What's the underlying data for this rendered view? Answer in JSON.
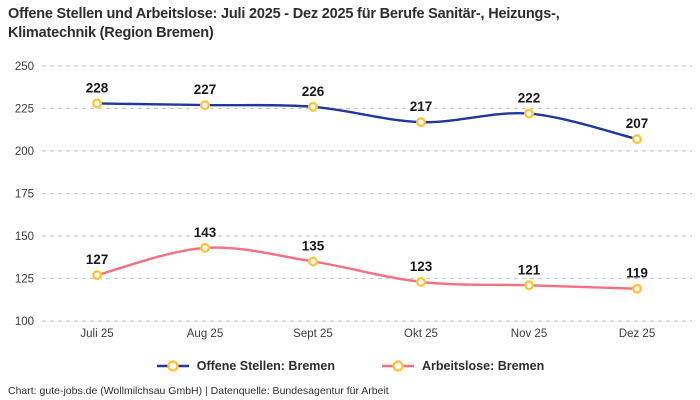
{
  "title": {
    "lines": [
      "Offene Stellen und Arbeitslose: Juli 2025 - Dez 2025 für Berufe Sanitär-, Heizungs-,",
      "Klimatechnik (Region Bremen)"
    ]
  },
  "footer": {
    "credit": "Chart: gute-jobs.de (Wollmilchsau GmbH) | Datenquelle: Bundesagentur für Arbeit"
  },
  "colors": {
    "series_offene_stellen": "#22389f",
    "series_arbeitslose": "#f96e80",
    "marker_ring": "#ffc53d",
    "marker_fill": "#ffffff",
    "grid": "#cbcbcb",
    "axis_text": "#3c3c3c",
    "data_label": "#1a1a1a",
    "title_text": "#2e2e2e"
  },
  "chart_data": {
    "type": "line",
    "categories": [
      "Juli 25",
      "Aug 25",
      "Sept 25",
      "Okt 25",
      "Nov 25",
      "Dez 25"
    ],
    "series": [
      {
        "name": "Offene Stellen: Bremen",
        "color_key": "series_offene_stellen",
        "values": [
          228,
          227,
          226,
          217,
          222,
          207
        ]
      },
      {
        "name": "Arbeitslose: Bremen",
        "color_key": "series_arbeitslose",
        "values": [
          127,
          143,
          135,
          123,
          121,
          119
        ]
      }
    ],
    "ylim": [
      100,
      250
    ],
    "yticks": [
      100,
      125,
      150,
      175,
      200,
      225,
      250
    ],
    "grid": "horizontal-dashed",
    "curve": "smooth",
    "marker_style": "open-circle-gold",
    "data_labels": true,
    "legend_position": "bottom"
  }
}
